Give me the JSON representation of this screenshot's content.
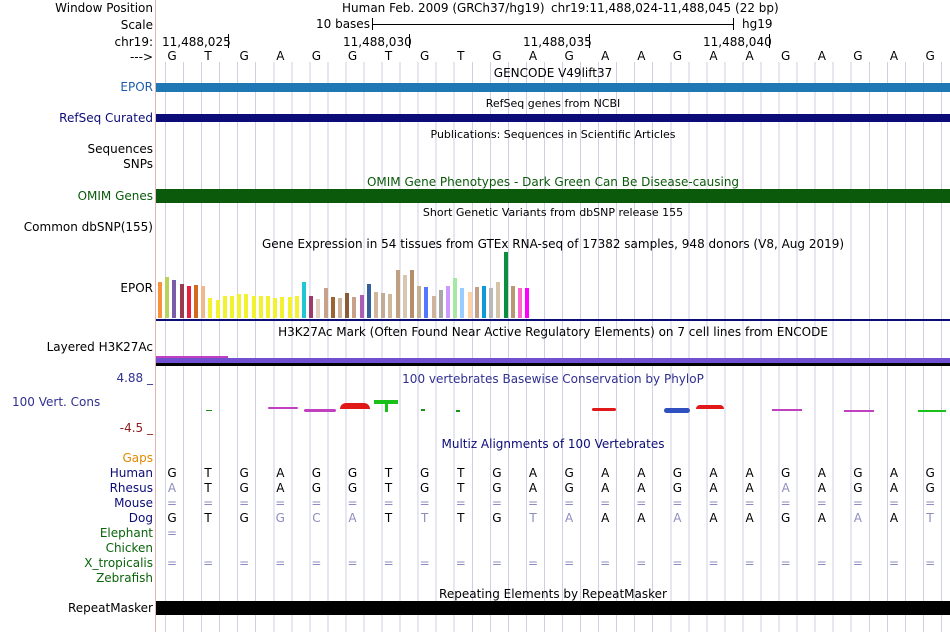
{
  "header": {
    "window_position_label": "Window Position",
    "scale_label": "Scale",
    "chrom_label": "chr19:",
    "arrow_label": "--->",
    "assembly_title": "Human Feb. 2009 (GRCh37/hg19)",
    "position": "chr19:11,488,024-11,488,045 (22 bp)",
    "scale_text": "10 bases",
    "db_label": "hg19",
    "coords": [
      "11,488,025",
      "11,488,030",
      "11,488,035",
      "11,488,040"
    ]
  },
  "base_sequence": [
    "G",
    "T",
    "G",
    "A",
    "G",
    "G",
    "T",
    "G",
    "T",
    "G",
    "A",
    "G",
    "A",
    "A",
    "G",
    "A",
    "A",
    "G",
    "A",
    "G",
    "A",
    "G"
  ],
  "tracks": {
    "gencode": {
      "title": "GENCODE V49lift37",
      "label": "EPOR",
      "color": "#1f77b4"
    },
    "refseq": {
      "title": "RefSeq genes from NCBI",
      "label": "RefSeq Curated",
      "color": "#0c0c78"
    },
    "publications": {
      "title": "Publications: Sequences in Scientific Articles",
      "label1": "Sequences",
      "label2": "SNPs"
    },
    "omim": {
      "title": "OMIM Gene Phenotypes - Dark Green Can Be Disease-causing",
      "label": "OMIM Genes",
      "color": "#0b5a0b"
    },
    "dbsnp": {
      "title": "Short Genetic Variants from dbSNP release 155",
      "label": "Common dbSNP(155)"
    },
    "gtex": {
      "title": "Gene Expression in 54 tissues from GTEx RNA-seq of 17382 samples, 948 donors (V8, Aug 2019)",
      "label": "EPOR"
    },
    "h3k27ac": {
      "title": "H3K27Ac Mark (Often Found Near Active Regulatory Elements) on 7 cell lines from ENCODE",
      "label": "Layered H3K27Ac"
    },
    "cons": {
      "title": "100 vertebrates Basewise Conservation by PhyloP",
      "label": "100 Vert. Cons",
      "max": "4.88 _",
      "min": "-4.5 _"
    },
    "multiz": {
      "title": "Multiz Alignments of 100 Vertebrates",
      "gaps_label": "Gaps"
    },
    "repeatmasker": {
      "title": "Repeating Elements by RepeatMasker",
      "label": "RepeatMasker"
    }
  },
  "gtex_values": [
    0.55,
    0.62,
    0.58,
    0.52,
    0.49,
    0.5,
    0.48,
    0.3,
    0.28,
    0.33,
    0.34,
    0.36,
    0.36,
    0.33,
    0.34,
    0.33,
    0.31,
    0.32,
    0.32,
    0.34,
    0.55,
    0.33,
    0.29,
    0.45,
    0.32,
    0.3,
    0.38,
    0.32,
    0.35,
    0.51,
    0.4,
    0.38,
    0.37,
    0.72,
    0.65,
    0.72,
    0.48,
    0.47,
    0.34,
    0.42,
    0.48,
    0.6,
    0.45,
    0.4,
    0.47,
    0.48,
    0.45,
    0.55,
    1.0,
    0.48,
    0.46,
    0.46
  ],
  "gtex_colors": [
    "#f9913a",
    "#b9d25c",
    "#7c5bab",
    "#9a3b4f",
    "#e8203d",
    "#d2691e",
    "#f0b88e",
    "#f2f230",
    "#f2f230",
    "#f2f230",
    "#f2f230",
    "#f2f230",
    "#f2f230",
    "#f2f230",
    "#f2f230",
    "#f2f230",
    "#f2f230",
    "#f2f230",
    "#f2f230",
    "#f2f230",
    "#22c6d0",
    "#9c3a6b",
    "#e3cfc0",
    "#c9a089",
    "#996633",
    "#cdb49b",
    "#8a5b36",
    "#c9a089",
    "#ad5db8",
    "#355e9c",
    "#d3b59b",
    "#c2ab97",
    "#cfb79a",
    "#c0a080",
    "#d8c7b0",
    "#b68d6b",
    "#c5b094",
    "#5577ff",
    "#cdb49b",
    "#a6a6a6",
    "#cc99ff",
    "#a6e8a6",
    "#99ccff",
    "#ffd1a6",
    "#c2a086",
    "#0c9bd6",
    "#b9b9b9",
    "#d6c4a8",
    "#0a8f3e",
    "#b89972",
    "#ff66cc",
    "#ff00ff"
  ],
  "multiz": {
    "species": [
      {
        "name": "Human",
        "color": "#0c0c78",
        "bases": [
          "G",
          "T",
          "G",
          "A",
          "G",
          "G",
          "T",
          "G",
          "T",
          "G",
          "A",
          "G",
          "A",
          "A",
          "G",
          "A",
          "A",
          "G",
          "A",
          "G",
          "A",
          "G"
        ],
        "faded": []
      },
      {
        "name": "Rhesus",
        "color": "#0c0c78",
        "bases": [
          "A",
          "T",
          "G",
          "A",
          "G",
          "G",
          "T",
          "G",
          "T",
          "G",
          "A",
          "G",
          "A",
          "A",
          "G",
          "A",
          "A",
          "A",
          "A",
          "G",
          "A",
          "G"
        ],
        "faded": [
          0,
          17
        ]
      },
      {
        "name": "Mouse",
        "color": "#0c0c78",
        "bases": [
          "=",
          "=",
          "=",
          "=",
          "=",
          "=",
          "=",
          "=",
          "=",
          "=",
          "=",
          "=",
          "=",
          "=",
          "=",
          "=",
          "=",
          "=",
          "=",
          "=",
          "=",
          "="
        ],
        "faded": []
      },
      {
        "name": "Dog",
        "color": "#0c0c78",
        "bases": [
          "G",
          "T",
          "G",
          "G",
          "C",
          "A",
          "T",
          "T",
          "T",
          "G",
          "T",
          "A",
          "A",
          "A",
          "A",
          "A",
          "A",
          "G",
          "A",
          "A",
          "A",
          "T"
        ],
        "faded": [
          3,
          4,
          5,
          7,
          10,
          11,
          14,
          19,
          21
        ]
      },
      {
        "name": "Elephant",
        "color": "#0a640a",
        "bases": [
          "=",
          "",
          "",
          "",
          "",
          "",
          "",
          "",
          "",
          "",
          "",
          "",
          "",
          "",
          "",
          "",
          "",
          "",
          "",
          "",
          "",
          ""
        ],
        "faded": []
      },
      {
        "name": "Chicken",
        "color": "#0a640a",
        "bases": [
          "",
          "",
          "",
          "",
          "",
          "",
          "",
          "",
          "",
          "",
          "",
          "",
          "",
          "",
          "",
          "",
          "",
          "",
          "",
          "",
          "",
          ""
        ],
        "faded": []
      },
      {
        "name": "X_tropicalis",
        "color": "#0a640a",
        "bases": [
          "=",
          "=",
          "=",
          "=",
          "=",
          "=",
          "=",
          "=",
          "=",
          "=",
          "=",
          "=",
          "=",
          "=",
          "=",
          "=",
          "=",
          "=",
          "=",
          "=",
          "=",
          "="
        ],
        "faded": []
      },
      {
        "name": "Zebrafish",
        "color": "#0a640a",
        "bases": [
          "",
          "",
          "",
          "",
          "",
          "",
          "",
          "",
          "",
          "",
          "",
          "",
          "",
          "",
          "",
          "",
          "",
          "",
          "",
          "",
          "",
          ""
        ],
        "faded": []
      }
    ]
  },
  "colors": {
    "label_blue": "#1f5fa8",
    "gaps": "#e08a00",
    "cons_max": "#303090",
    "cons_min": "#8b2020",
    "h3k27ac": "#7050d0"
  }
}
